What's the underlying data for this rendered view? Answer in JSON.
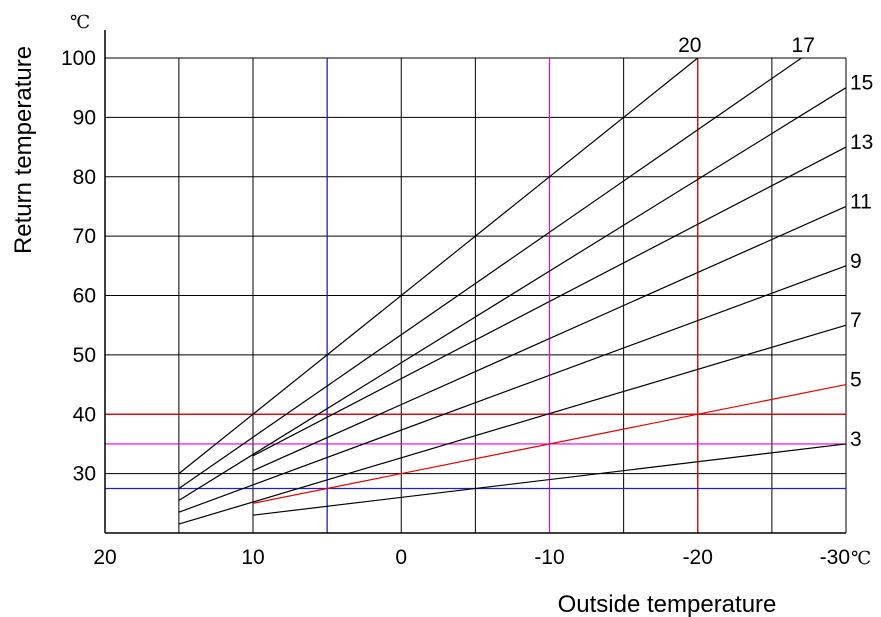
{
  "chart_data": {
    "type": "line",
    "title": "",
    "xlabel": "Outside temperature",
    "ylabel": "Return temperature",
    "y_unit": "℃",
    "x_unit": "℃",
    "xlim": [
      20,
      -30
    ],
    "ylim": [
      20,
      100
    ],
    "x_direction": "decreasing",
    "grid": true,
    "x_ticks": [
      {
        "value": 20,
        "label": "20"
      },
      {
        "value": 10,
        "label": "10"
      },
      {
        "value": 0,
        "label": "0"
      },
      {
        "value": -10,
        "label": "-10"
      },
      {
        "value": -20,
        "label": "-20"
      },
      {
        "value": -30,
        "label": "-30"
      }
    ],
    "y_ticks": [
      {
        "value": 30,
        "label": "30"
      },
      {
        "value": 40,
        "label": "40"
      },
      {
        "value": 50,
        "label": "50"
      },
      {
        "value": 60,
        "label": "60"
      },
      {
        "value": 70,
        "label": "70"
      },
      {
        "value": 80,
        "label": "80"
      },
      {
        "value": 90,
        "label": "90"
      },
      {
        "value": 100,
        "label": "100"
      }
    ],
    "x_gridlines": [
      15,
      10,
      5,
      0,
      -5,
      -10,
      -15,
      -20,
      -25,
      -30
    ],
    "y_gridlines": [
      30,
      40,
      50,
      60,
      70,
      80,
      90,
      100
    ],
    "series": [
      {
        "name": "20",
        "color": "#000000",
        "points": [
          [
            15,
            30
          ],
          [
            -20,
            100
          ]
        ]
      },
      {
        "name": "17",
        "color": "#000000",
        "points": [
          [
            15,
            27.5
          ],
          [
            -27,
            100
          ]
        ]
      },
      {
        "name": "15",
        "color": "#000000",
        "points": [
          [
            15,
            25.5
          ],
          [
            -30,
            95
          ]
        ]
      },
      {
        "name": "13",
        "color": "#000000",
        "points": [
          [
            10,
            33
          ],
          [
            -30,
            85
          ]
        ]
      },
      {
        "name": "11",
        "color": "#000000",
        "points": [
          [
            10,
            30.5
          ],
          [
            -30,
            75
          ]
        ]
      },
      {
        "name": "9",
        "color": "#000000",
        "points": [
          [
            15,
            23.5
          ],
          [
            -30,
            65
          ]
        ]
      },
      {
        "name": "7",
        "color": "#000000",
        "points": [
          [
            15,
            21.5
          ],
          [
            -30,
            55
          ]
        ]
      },
      {
        "name": "5",
        "color": "#e00000",
        "points": [
          [
            10,
            25
          ],
          [
            -30,
            45
          ]
        ]
      },
      {
        "name": "3",
        "color": "#000000",
        "points": [
          [
            10,
            23
          ],
          [
            -30,
            35
          ]
        ]
      }
    ],
    "reference_lines": [
      {
        "orientation": "horizontal",
        "value": 40,
        "color": "#e00000"
      },
      {
        "orientation": "vertical",
        "value": -20,
        "color": "#e00000"
      },
      {
        "orientation": "horizontal",
        "value": 35,
        "color": "#e000e0"
      },
      {
        "orientation": "vertical",
        "value": -10,
        "color": "#e000e0"
      },
      {
        "orientation": "horizontal",
        "value": 27.5,
        "color": "#2020c0"
      },
      {
        "orientation": "vertical",
        "value": 5,
        "color": "#2020c0"
      }
    ]
  }
}
